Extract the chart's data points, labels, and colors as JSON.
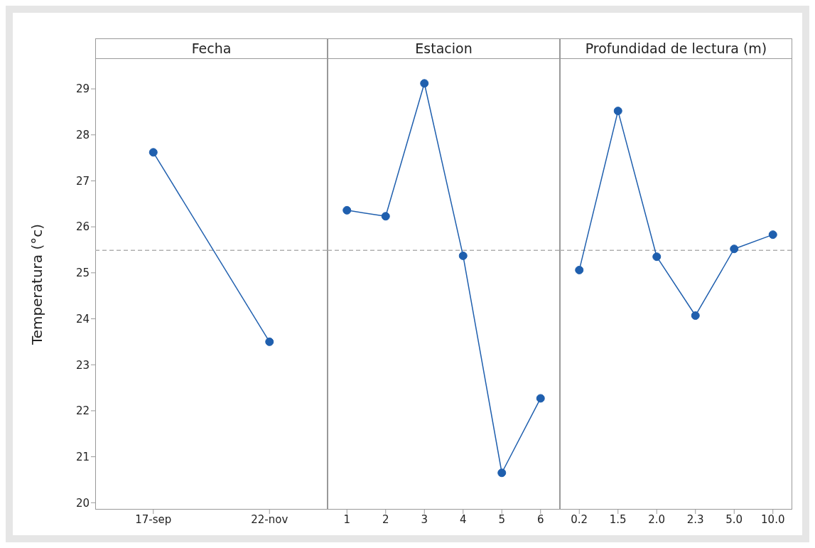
{
  "chart_data": [
    {
      "type": "line",
      "title": "Fecha",
      "ylabel": "Temperatura (°c)",
      "categories": [
        "17-sep",
        "22-nov"
      ],
      "values": [
        27.62,
        23.5
      ],
      "color": "#1f5fae",
      "ylim": [
        19.85,
        29.65
      ],
      "yticks": [
        20,
        21,
        22,
        23,
        24,
        25,
        26,
        27,
        28,
        29
      ],
      "ref_lines": [
        {
          "axis": "y",
          "value": 25.49,
          "color": "#b0b0b0",
          "line_style": "dashed"
        }
      ],
      "marker": "circle",
      "line_style": "solid"
    },
    {
      "type": "line",
      "title": "Estacion",
      "categories": [
        "1",
        "2",
        "3",
        "4",
        "5",
        "6"
      ],
      "values": [
        26.36,
        26.23,
        29.12,
        25.37,
        20.65,
        22.27
      ],
      "color": "#1f5fae",
      "ylim": [
        19.85,
        29.65
      ],
      "yticks": [
        20,
        21,
        22,
        23,
        24,
        25,
        26,
        27,
        28,
        29
      ],
      "tick_labels": "x",
      "ref_lines": [
        {
          "axis": "y",
          "value": 25.49,
          "color": "#b0b0b0",
          "line_style": "dashed"
        }
      ],
      "marker": "circle",
      "line_style": "solid"
    },
    {
      "type": "line",
      "title": "Profundidad de lectura (m)",
      "categories": [
        "0.2",
        "1.5",
        "2.0",
        "2.3",
        "5.0",
        "10.0"
      ],
      "values": [
        25.06,
        28.52,
        25.35,
        24.07,
        25.52,
        25.83
      ],
      "color": "#1f5fae",
      "ylim": [
        19.85,
        29.65
      ],
      "yticks": [
        20,
        21,
        22,
        23,
        24,
        25,
        26,
        27,
        28,
        29
      ],
      "tick_labels": "x",
      "ref_lines": [
        {
          "axis": "y",
          "value": 25.49,
          "color": "#b0b0b0",
          "line_style": "dashed"
        }
      ],
      "marker": "circle",
      "line_style": "solid"
    }
  ]
}
